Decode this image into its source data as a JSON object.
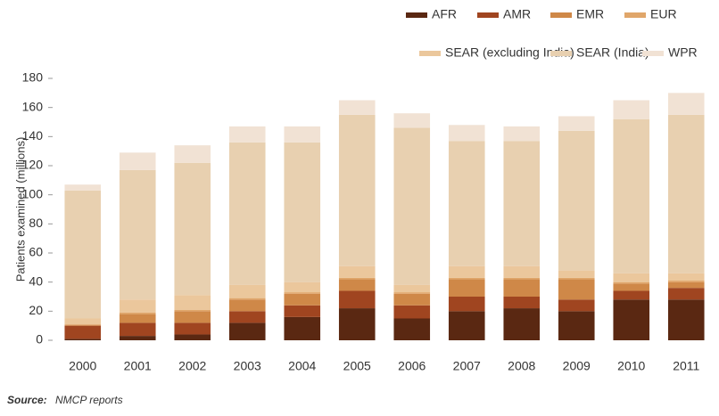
{
  "chart_data": {
    "type": "stacked_bar",
    "y_label": "Patients examined (millions)",
    "source_label": "Source:",
    "source": "NMCP reports",
    "categories": [
      "2000",
      "2001",
      "2002",
      "2003",
      "2004",
      "2005",
      "2006",
      "2007",
      "2008",
      "2009",
      "2010",
      "2011"
    ],
    "ylim": [
      0,
      180
    ],
    "yticks": [
      0,
      20,
      40,
      60,
      80,
      100,
      120,
      140,
      160,
      180
    ],
    "series": [
      {
        "name": "AFR",
        "color": "#5a2812",
        "values": [
          1,
          3,
          4,
          12,
          16,
          22,
          15,
          20,
          22,
          20,
          28,
          28
        ]
      },
      {
        "name": "AMR",
        "color": "#a04520",
        "values": [
          9,
          9,
          8,
          8,
          8,
          12,
          9,
          10,
          8,
          8,
          6,
          8
        ]
      },
      {
        "name": "EMR",
        "color": "#cf8848",
        "values": [
          0.5,
          6,
          8,
          8,
          8,
          8,
          8,
          12,
          12,
          14,
          5,
          4
        ]
      },
      {
        "name": "EUR",
        "color": "#e0a66a",
        "values": [
          0.5,
          1,
          1,
          1,
          1,
          1,
          1,
          1,
          1,
          1,
          1,
          1
        ]
      },
      {
        "name": "SEAR (excluding India)",
        "color": "#ebc79c",
        "values": [
          4,
          9,
          10,
          9,
          7,
          8,
          5,
          8,
          8,
          5,
          6,
          5
        ]
      },
      {
        "name": "SEAR (India)",
        "color": "#e8d0b0",
        "values": [
          88,
          89,
          91,
          98,
          96,
          104,
          108,
          86,
          86,
          96,
          106,
          109
        ]
      },
      {
        "name": "WPR",
        "color": "#f1e2d4",
        "values": [
          4,
          12,
          12,
          11,
          11,
          10,
          10,
          11,
          10,
          10,
          13,
          15
        ]
      }
    ]
  }
}
